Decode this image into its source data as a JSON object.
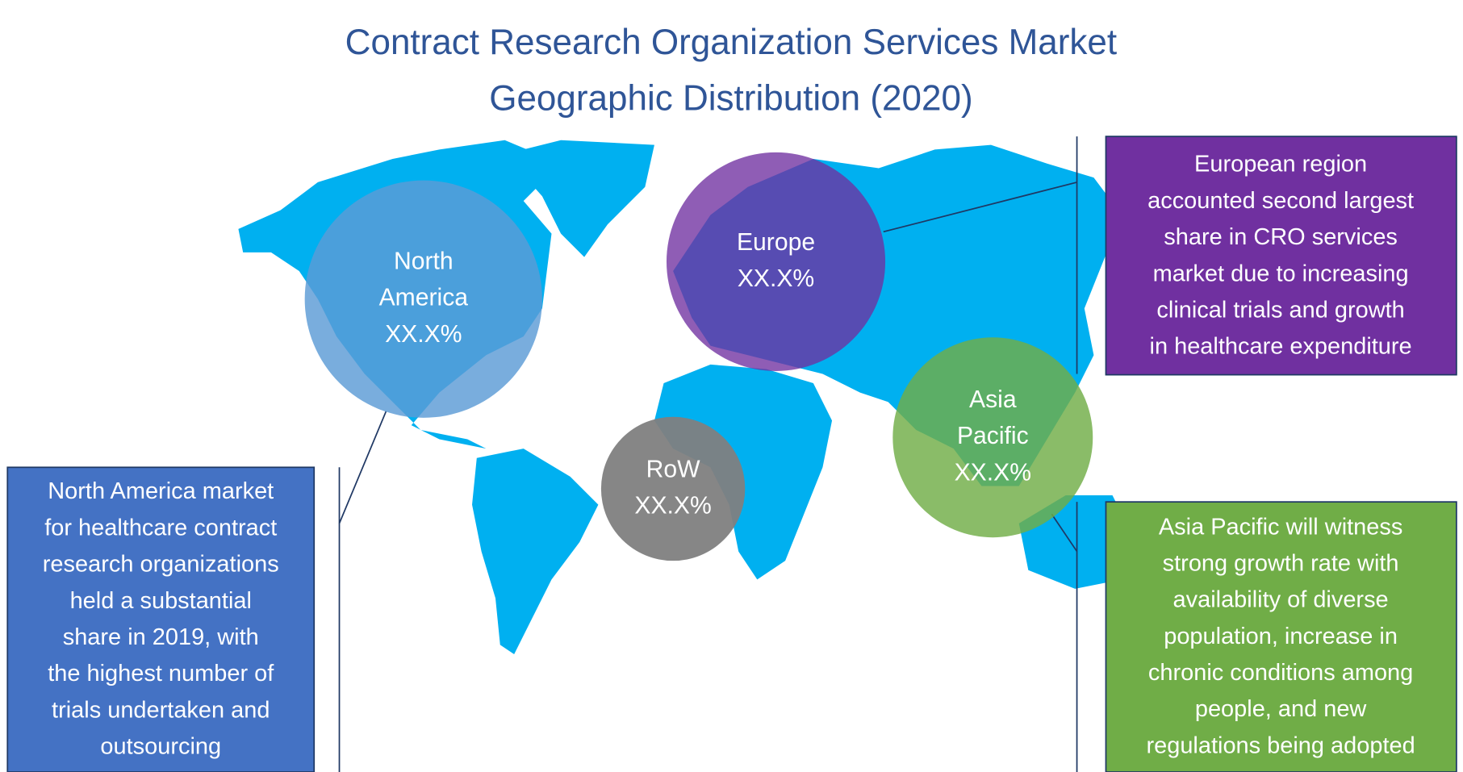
{
  "title": [
    "Contract Research Organization Services Market",
    "Geographic Distribution (2020)"
  ],
  "regions": [
    {
      "name": [
        "North",
        "America"
      ],
      "share": "XX.X%"
    },
    {
      "name": [
        "Europe"
      ],
      "share": "XX.X%"
    },
    {
      "name": [
        "RoW"
      ],
      "share": "XX.X%"
    },
    {
      "name": [
        "Asia",
        "Pacific"
      ],
      "share": "XX.X%"
    }
  ],
  "callouts": [
    {
      "lines": [
        "North America market",
        "for healthcare contract",
        "research organizations",
        "held a substantial",
        "share in 2019, with",
        "the highest number of",
        "trials undertaken and",
        "outsourcing"
      ]
    },
    {
      "lines": [
        "European region",
        "accounted second largest",
        "share in CRO services",
        "market due to increasing",
        "clinical trials and growth",
        "in healthcare expenditure"
      ]
    },
    {
      "lines": [
        "Asia Pacific will witness",
        "strong growth rate with",
        "availability of diverse",
        "population, increase in",
        "chronic conditions among",
        "people, and new",
        "regulations being adopted"
      ]
    }
  ]
}
